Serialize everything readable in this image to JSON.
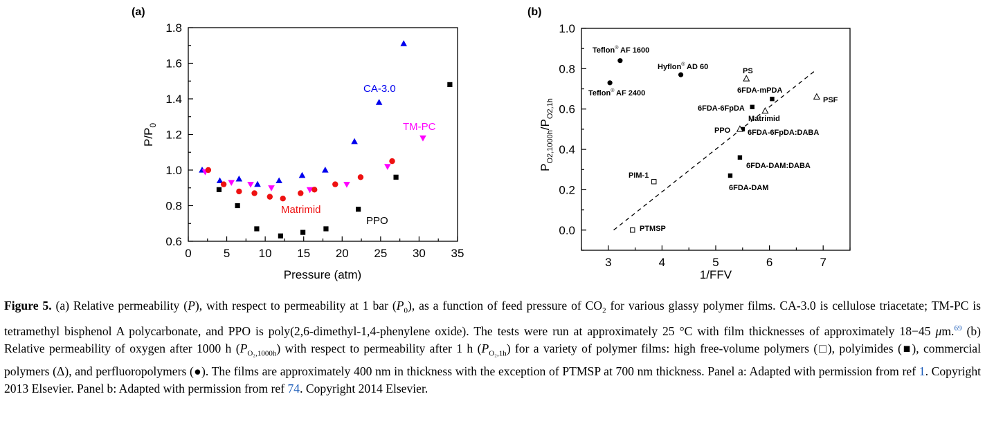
{
  "panels": {
    "a_tag": "(a)",
    "b_tag": "(b)"
  },
  "chart_data": [
    {
      "type": "scatter",
      "panel": "(a)",
      "xlabel": "Pressure (atm)",
      "ylabel": "P/P0",
      "ylabel_main": "P/P",
      "ylabel_sub": "0",
      "xlim": [
        0,
        35
      ],
      "ylim": [
        0.6,
        1.8
      ],
      "x_ticks": [
        "0",
        "5",
        "10",
        "15",
        "20",
        "25",
        "30",
        "35"
      ],
      "y_ticks": [
        "0.6",
        "0.8",
        "1.0",
        "1.2",
        "1.4",
        "1.6",
        "1.8"
      ],
      "grid": false,
      "series": [
        {
          "name": "CA-3.0",
          "color": "#0000ee",
          "marker": "triangle-up",
          "points": [
            [
              1.8,
              1.0
            ],
            [
              4.1,
              0.94
            ],
            [
              6.6,
              0.95
            ],
            [
              9.0,
              0.92
            ],
            [
              11.8,
              0.94
            ],
            [
              14.8,
              0.97
            ],
            [
              17.8,
              1.0
            ],
            [
              21.6,
              1.16
            ],
            [
              24.8,
              1.38
            ],
            [
              28.0,
              1.71
            ]
          ]
        },
        {
          "name": "TM-PC",
          "color": "#ff00ff",
          "marker": "triangle-down",
          "points": [
            [
              2.2,
              0.99
            ],
            [
              5.6,
              0.93
            ],
            [
              8.1,
              0.92
            ],
            [
              10.8,
              0.9
            ],
            [
              15.8,
              0.89
            ],
            [
              20.6,
              0.92
            ],
            [
              25.9,
              1.02
            ],
            [
              30.5,
              1.18
            ]
          ]
        },
        {
          "name": "Matrimid",
          "color": "#ee1111",
          "marker": "circle",
          "points": [
            [
              2.6,
              1.0
            ],
            [
              4.6,
              0.92
            ],
            [
              6.6,
              0.88
            ],
            [
              8.6,
              0.87
            ],
            [
              10.6,
              0.85
            ],
            [
              12.3,
              0.84
            ],
            [
              14.6,
              0.87
            ],
            [
              16.4,
              0.89
            ],
            [
              19.1,
              0.92
            ],
            [
              22.4,
              0.96
            ],
            [
              26.5,
              1.05
            ]
          ]
        },
        {
          "name": "PPO",
          "color": "#000000",
          "marker": "square",
          "points": [
            [
              4.0,
              0.89
            ],
            [
              6.4,
              0.8
            ],
            [
              8.9,
              0.67
            ],
            [
              12.0,
              0.63
            ],
            [
              14.9,
              0.65
            ],
            [
              17.9,
              0.67
            ],
            [
              22.1,
              0.78
            ],
            [
              27.0,
              0.96
            ],
            [
              34.0,
              1.48
            ]
          ]
        }
      ],
      "annotations": [
        "CA-3.0",
        "TM-PC",
        "Matrimid",
        "PPO"
      ]
    },
    {
      "type": "scatter",
      "panel": "(b)",
      "xlabel": "1/FFV",
      "ylabel": "PO2,1000h/PO2,1h",
      "ylabel_p1": "P",
      "ylabel_sub1": "O2,1000h",
      "ylabel_slash": "/P",
      "ylabel_sub2": "O2,1h",
      "xlim": [
        2.5,
        7.5
      ],
      "ylim": [
        -0.1,
        1.0
      ],
      "x_ticks": [
        "3",
        "4",
        "5",
        "6",
        "7"
      ],
      "y_ticks": [
        "0.0",
        "0.2",
        "0.4",
        "0.6",
        "0.8",
        "1.0"
      ],
      "grid": false,
      "trend_line": [
        [
          3.1,
          0.0
        ],
        [
          6.85,
          0.79
        ]
      ],
      "points": [
        {
          "label": "Teflon AF 1600",
          "x": 3.22,
          "y": 0.84,
          "marker": "filled-circle"
        },
        {
          "label": "Teflon AF 2400",
          "x": 3.03,
          "y": 0.73,
          "marker": "filled-circle"
        },
        {
          "label": "Hyflon AD 60",
          "x": 4.35,
          "y": 0.77,
          "marker": "filled-circle"
        },
        {
          "label": "PS",
          "x": 5.57,
          "y": 0.75,
          "marker": "open-triangle"
        },
        {
          "label": "6FDA-mPDA",
          "x": 6.05,
          "y": 0.65,
          "marker": "filled-square"
        },
        {
          "label": "PSF",
          "x": 6.88,
          "y": 0.66,
          "marker": "open-triangle"
        },
        {
          "label": "6FDA-6FpDA",
          "x": 5.68,
          "y": 0.61,
          "marker": "filled-square"
        },
        {
          "label": "Matrimid",
          "x": 5.92,
          "y": 0.59,
          "marker": "open-triangle"
        },
        {
          "label": "PPO",
          "x": 5.5,
          "y": 0.5,
          "marker": "filled-square"
        },
        {
          "label": "6FDA-6FpDA:DABA",
          "x": 5.45,
          "y": 0.5,
          "marker": "open-triangle"
        },
        {
          "label": "6FDA-DAM:DABA",
          "x": 5.45,
          "y": 0.36,
          "marker": "filled-square"
        },
        {
          "label": "6FDA-DAM",
          "x": 5.27,
          "y": 0.27,
          "marker": "filled-square"
        },
        {
          "label": "PIM-1",
          "x": 3.85,
          "y": 0.24,
          "marker": "open-square"
        },
        {
          "label": "PTMSP",
          "x": 3.45,
          "y": 0.0,
          "marker": "open-square"
        }
      ]
    }
  ],
  "labels_b": {
    "teflon1600_a": "Teflon",
    "teflon1600_b": " AF 1600",
    "teflon2400_a": "Teflon",
    "teflon2400_b": " AF 2400",
    "hyflon_a": "Hyflon",
    "hyflon_b": " AD 60",
    "reg": "®",
    "ps": "PS",
    "mpda": "6FDA-mPDA",
    "psf": "PSF",
    "fpda": "6FDA-6FpDA",
    "matrimid": "Matrimid",
    "ppo": "PPO",
    "fpda_daba": "6FDA-6FpDA:DABA",
    "dam_daba": "6FDA-DAM:DABA",
    "dam": "6FDA-DAM",
    "pim": "PIM-1",
    "ptmsp": "PTMSP"
  },
  "caption": {
    "figure_label": "Figure 5.",
    "t1": " (a) Relative permeability (",
    "t2": "), with respect to permeability at 1 bar (",
    "t3": "), as a function of feed pressure of CO",
    "t4": " for various glassy polymer films. CA-3.0 is cellulose triacetate; TM-PC is tetramethyl bisphenol A polycarbonate, and PPO is poly(2,6-dimethyl-1,4-phenylene oxide). The tests were run at approximately 25 °C with film thicknesses of approximately 18−45 ",
    "t5": "m.",
    "t6": " (b) Relative permeability of oxygen after 1000 h (",
    "t7": ") with respect to permeability after 1 h (",
    "t8": ") for a variety of polymer films: high free-volume polymers (□), polyimides (■), commercial polymers (Δ), and perfluoropolymers (●). The films are approximately 400 nm in thickness with the exception of PTMSP at 700 nm thickness. Panel a: Adapted with permission from ref ",
    "t9": ". Copyright 2013 Elsevier. Panel b: Adapted with permission from ref ",
    "t10": ". Copyright 2014 Elsevier.",
    "sym_P": "P",
    "sym_P0": "P",
    "sub_0": "0",
    "sub_2": "2",
    "mu": "μ",
    "ref69": "69",
    "sub_o2_1000h": "O₂,1000h",
    "sub_o2_1h": "O₂,1h",
    "ref1": "1",
    "ref74": "74"
  }
}
